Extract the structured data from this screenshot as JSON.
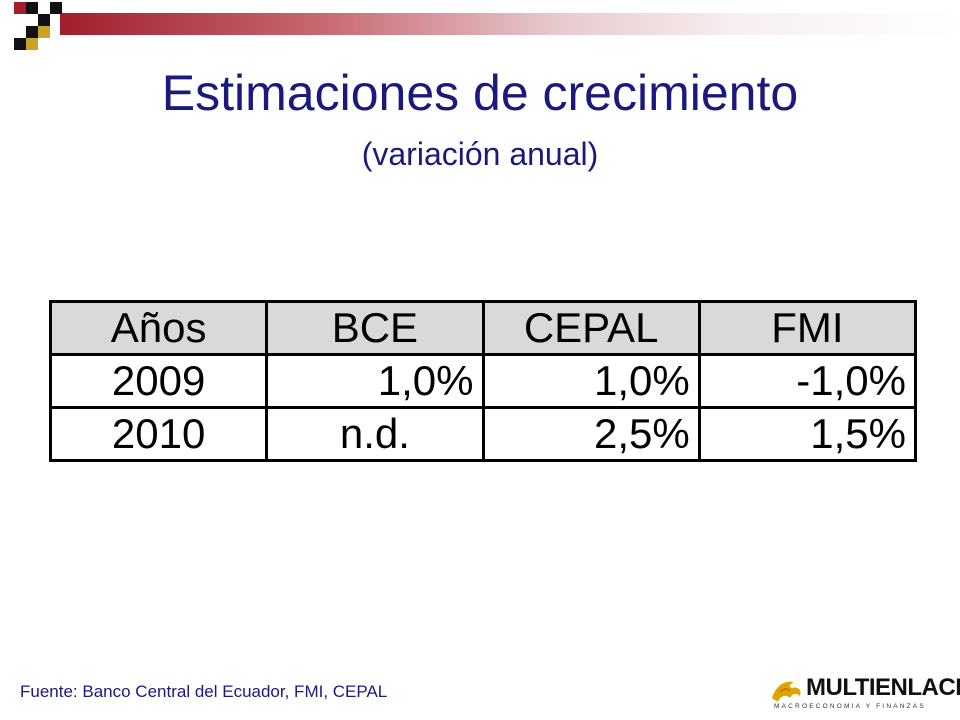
{
  "slide": {
    "title": "Estimaciones de crecimiento",
    "subtitle": "(variación anual)"
  },
  "table": {
    "headers": [
      "Años",
      "BCE",
      "CEPAL",
      "FMI"
    ],
    "rows": [
      [
        "2009",
        "1,0%",
        "1,0%",
        "-1,0%"
      ],
      [
        "2010",
        "n.d.",
        "2,5%",
        "1,5%"
      ]
    ]
  },
  "footer": {
    "source": "Fuente: Banco Central del Ecuador, FMI, CEPAL",
    "logo_name": "MULTIENLACE",
    "logo_tagline": "MACROECONOMIA Y FINANZAS"
  },
  "colors": {
    "title": "#1a1a7e",
    "band_start": "#a01e2e",
    "header_bg": "#d9d9d9",
    "logo_accent": "#e0a400"
  }
}
